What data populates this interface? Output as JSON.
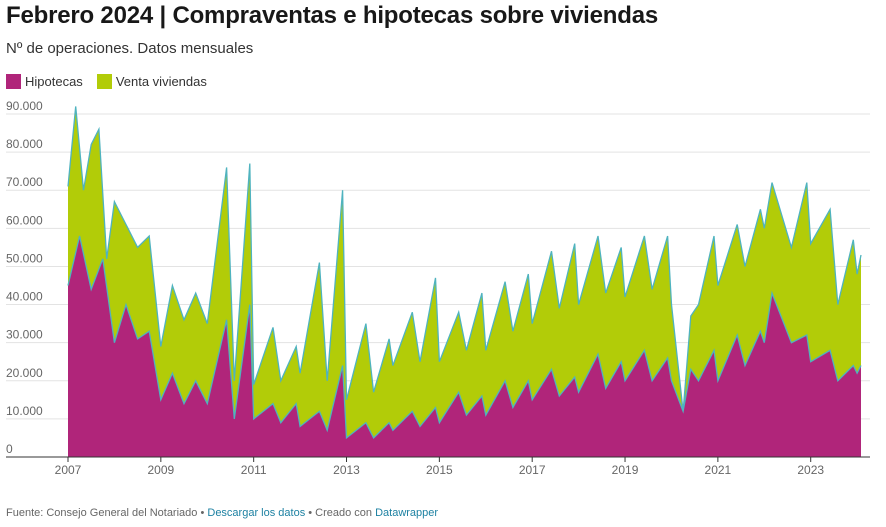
{
  "header": {
    "title": "Febrero 2024 | Compraventas e hipotecas sobre viviendas",
    "subtitle": "Nº de operaciones. Datos mensuales"
  },
  "legend": [
    {
      "label": "Hipotecas",
      "color": "#b0257a"
    },
    {
      "label": "Venta viviendas",
      "color": "#b2cc08"
    }
  ],
  "footer": {
    "source": "Fuente: Consejo General del Notariado",
    "sep1": " • ",
    "download_link": "Descargar los datos",
    "sep2": " • Creado con ",
    "tool_link": "Datawrapper"
  },
  "chart_data": {
    "type": "area",
    "stacked": false,
    "grid": true,
    "x_ticks": [
      "2007",
      "2009",
      "2011",
      "2013",
      "2015",
      "2017",
      "2019",
      "2021",
      "2023"
    ],
    "y_ticks": [
      "0",
      "10.000",
      "20.000",
      "30.000",
      "40.000",
      "50.000",
      "60.000",
      "70.000",
      "80.000",
      "90.000"
    ],
    "ylim": [
      0,
      90000
    ],
    "xlim": [
      "2007-01",
      "2024-02"
    ],
    "line_color": "#4fb3bf",
    "series": [
      {
        "name": "Hipotecas",
        "color": "#b0257a",
        "points": [
          [
            "2007-01",
            45000
          ],
          [
            "2007-04",
            58000
          ],
          [
            "2007-07",
            44000
          ],
          [
            "2007-10",
            52000
          ],
          [
            "2008-01",
            30000
          ],
          [
            "2008-04",
            40000
          ],
          [
            "2008-07",
            31000
          ],
          [
            "2008-10",
            33000
          ],
          [
            "2009-01",
            15000
          ],
          [
            "2009-04",
            22000
          ],
          [
            "2009-07",
            14000
          ],
          [
            "2009-10",
            20000
          ],
          [
            "2010-01",
            14000
          ],
          [
            "2010-06",
            36000
          ],
          [
            "2010-08",
            10000
          ],
          [
            "2010-12",
            40000
          ],
          [
            "2011-01",
            10000
          ],
          [
            "2011-06",
            14000
          ],
          [
            "2011-08",
            9000
          ],
          [
            "2011-12",
            14000
          ],
          [
            "2012-01",
            8000
          ],
          [
            "2012-06",
            12000
          ],
          [
            "2012-08",
            7000
          ],
          [
            "2012-12",
            24000
          ],
          [
            "2013-01",
            5000
          ],
          [
            "2013-06",
            9000
          ],
          [
            "2013-08",
            5000
          ],
          [
            "2013-12",
            9000
          ],
          [
            "2014-01",
            7000
          ],
          [
            "2014-06",
            12000
          ],
          [
            "2014-08",
            8000
          ],
          [
            "2014-12",
            13000
          ],
          [
            "2015-01",
            9000
          ],
          [
            "2015-06",
            17000
          ],
          [
            "2015-08",
            11000
          ],
          [
            "2015-12",
            16000
          ],
          [
            "2016-01",
            11000
          ],
          [
            "2016-06",
            20000
          ],
          [
            "2016-08",
            13000
          ],
          [
            "2016-12",
            20000
          ],
          [
            "2017-01",
            15000
          ],
          [
            "2017-06",
            23000
          ],
          [
            "2017-08",
            16000
          ],
          [
            "2017-12",
            21000
          ],
          [
            "2018-01",
            17000
          ],
          [
            "2018-06",
            27000
          ],
          [
            "2018-08",
            18000
          ],
          [
            "2018-12",
            25000
          ],
          [
            "2019-01",
            20000
          ],
          [
            "2019-06",
            28000
          ],
          [
            "2019-08",
            20000
          ],
          [
            "2019-12",
            26000
          ],
          [
            "2020-01",
            20000
          ],
          [
            "2020-04",
            12000
          ],
          [
            "2020-06",
            23000
          ],
          [
            "2020-08",
            20000
          ],
          [
            "2020-12",
            28000
          ],
          [
            "2021-01",
            20000
          ],
          [
            "2021-06",
            32000
          ],
          [
            "2021-08",
            24000
          ],
          [
            "2021-12",
            33000
          ],
          [
            "2022-01",
            30000
          ],
          [
            "2022-03",
            43000
          ],
          [
            "2022-08",
            30000
          ],
          [
            "2022-12",
            32000
          ],
          [
            "2023-01",
            25000
          ],
          [
            "2023-06",
            28000
          ],
          [
            "2023-08",
            20000
          ],
          [
            "2023-12",
            24000
          ],
          [
            "2024-01",
            22000
          ],
          [
            "2024-02",
            24000
          ]
        ]
      },
      {
        "name": "Venta viviendas",
        "color": "#b2cc08",
        "points": [
          [
            "2007-01",
            71000
          ],
          [
            "2007-03",
            92000
          ],
          [
            "2007-05",
            70000
          ],
          [
            "2007-07",
            82000
          ],
          [
            "2007-09",
            86000
          ],
          [
            "2007-11",
            52000
          ],
          [
            "2008-01",
            67000
          ],
          [
            "2008-04",
            61000
          ],
          [
            "2008-07",
            55000
          ],
          [
            "2008-10",
            58000
          ],
          [
            "2009-01",
            29000
          ],
          [
            "2009-04",
            45000
          ],
          [
            "2009-07",
            36000
          ],
          [
            "2009-10",
            43000
          ],
          [
            "2010-01",
            35000
          ],
          [
            "2010-06",
            76000
          ],
          [
            "2010-08",
            20000
          ],
          [
            "2010-12",
            77000
          ],
          [
            "2011-01",
            19000
          ],
          [
            "2011-06",
            34000
          ],
          [
            "2011-08",
            20000
          ],
          [
            "2011-12",
            29000
          ],
          [
            "2012-01",
            22000
          ],
          [
            "2012-06",
            51000
          ],
          [
            "2012-08",
            20000
          ],
          [
            "2012-12",
            70000
          ],
          [
            "2013-01",
            15000
          ],
          [
            "2013-06",
            35000
          ],
          [
            "2013-08",
            17000
          ],
          [
            "2013-12",
            31000
          ],
          [
            "2014-01",
            24000
          ],
          [
            "2014-06",
            38000
          ],
          [
            "2014-08",
            25000
          ],
          [
            "2014-12",
            47000
          ],
          [
            "2015-01",
            25000
          ],
          [
            "2015-06",
            38000
          ],
          [
            "2015-08",
            28000
          ],
          [
            "2015-12",
            43000
          ],
          [
            "2016-01",
            28000
          ],
          [
            "2016-06",
            46000
          ],
          [
            "2016-08",
            33000
          ],
          [
            "2016-12",
            48000
          ],
          [
            "2017-01",
            35000
          ],
          [
            "2017-06",
            54000
          ],
          [
            "2017-08",
            39000
          ],
          [
            "2017-12",
            56000
          ],
          [
            "2018-01",
            40000
          ],
          [
            "2018-06",
            58000
          ],
          [
            "2018-08",
            43000
          ],
          [
            "2018-12",
            55000
          ],
          [
            "2019-01",
            42000
          ],
          [
            "2019-06",
            58000
          ],
          [
            "2019-08",
            44000
          ],
          [
            "2019-12",
            58000
          ],
          [
            "2020-01",
            40000
          ],
          [
            "2020-04",
            12000
          ],
          [
            "2020-06",
            37000
          ],
          [
            "2020-08",
            40000
          ],
          [
            "2020-12",
            58000
          ],
          [
            "2021-01",
            45000
          ],
          [
            "2021-06",
            61000
          ],
          [
            "2021-08",
            50000
          ],
          [
            "2021-12",
            65000
          ],
          [
            "2022-01",
            60000
          ],
          [
            "2022-03",
            72000
          ],
          [
            "2022-08",
            55000
          ],
          [
            "2022-12",
            72000
          ],
          [
            "2023-01",
            56000
          ],
          [
            "2023-06",
            65000
          ],
          [
            "2023-08",
            40000
          ],
          [
            "2023-12",
            57000
          ],
          [
            "2024-01",
            48000
          ],
          [
            "2024-02",
            53000
          ]
        ]
      }
    ]
  }
}
